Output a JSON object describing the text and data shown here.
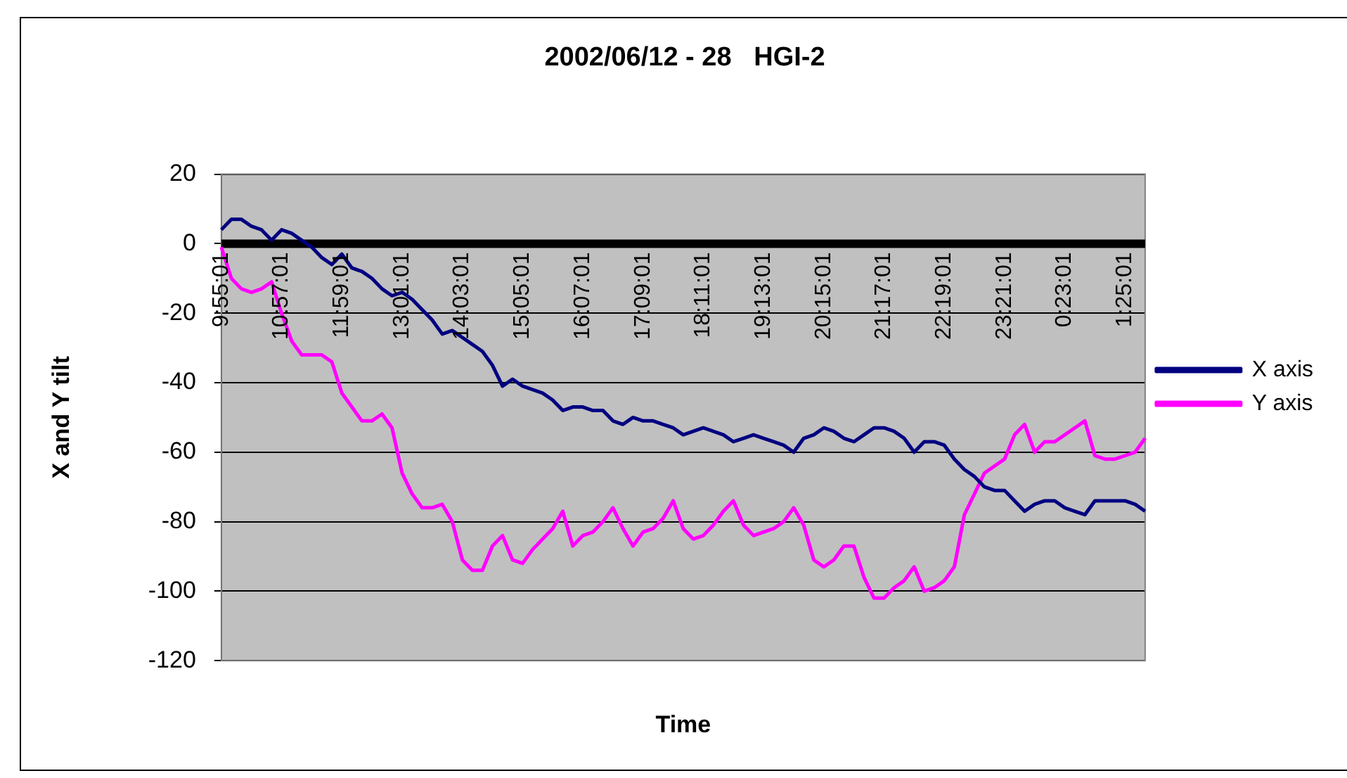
{
  "chart_data": {
    "type": "line",
    "title": "2002/06/12 - 28   HGI-2",
    "xlabel": "Time",
    "ylabel": "X and Y tilt",
    "categories": [
      "9:55:01",
      null,
      null,
      null,
      null,
      null,
      "10:57:01",
      null,
      null,
      null,
      null,
      null,
      "11:59:01",
      null,
      null,
      null,
      null,
      null,
      "13:01:01",
      null,
      null,
      null,
      null,
      null,
      "14:03:01",
      null,
      null,
      null,
      null,
      null,
      "15:05:01",
      null,
      null,
      null,
      null,
      null,
      "16:07:01",
      null,
      null,
      null,
      null,
      null,
      "17:09:01",
      null,
      null,
      null,
      null,
      null,
      "18:11:01",
      null,
      null,
      null,
      null,
      null,
      "19:13:01",
      null,
      null,
      null,
      null,
      null,
      "20:15:01",
      null,
      null,
      null,
      null,
      null,
      "21:17:01",
      null,
      null,
      null,
      null,
      null,
      "22:19:01",
      null,
      null,
      null,
      null,
      null,
      "23:21:01",
      null,
      null,
      null,
      null,
      null,
      "0:23:01",
      null,
      null,
      null,
      null,
      null,
      "1:25:01",
      null,
      null
    ],
    "series": [
      {
        "name": "X axis",
        "color": "#000080",
        "values": [
          4,
          7,
          7,
          5,
          4,
          1,
          4,
          3,
          1,
          -1,
          -4,
          -6,
          -3,
          -7,
          -8,
          -10,
          -13,
          -15,
          -14,
          -16,
          -19,
          -22,
          -26,
          -25,
          -27,
          -29,
          -31,
          -35,
          -41,
          -39,
          -41,
          -42,
          -43,
          -45,
          -48,
          -47,
          -47,
          -48,
          -48,
          -51,
          -52,
          -50,
          -51,
          -51,
          -52,
          -53,
          -55,
          -54,
          -53,
          -54,
          -55,
          -57,
          -56,
          -55,
          -56,
          -57,
          -58,
          -60,
          -56,
          -55,
          -53,
          -54,
          -56,
          -57,
          -55,
          -53,
          -53,
          -54,
          -56,
          -60,
          -57,
          -57,
          -58,
          -62,
          -65,
          -67,
          -70,
          -71,
          -71,
          -74,
          -77,
          -75,
          -74,
          -74,
          -76,
          -77,
          -78,
          -74,
          -74,
          -74,
          -74,
          -75,
          -77
        ]
      },
      {
        "name": "Y axis",
        "color": "#ff00ff",
        "values": [
          -1,
          -10,
          -13,
          -14,
          -13,
          -11,
          -20,
          -28,
          -32,
          -32,
          -32,
          -34,
          -43,
          -47,
          -51,
          -51,
          -49,
          -53,
          -66,
          -72,
          -76,
          -76,
          -75,
          -80,
          -91,
          -94,
          -94,
          -87,
          -84,
          -91,
          -92,
          -88,
          -85,
          -82,
          -77,
          -87,
          -84,
          -83,
          -80,
          -76,
          -82,
          -87,
          -83,
          -82,
          -79,
          -74,
          -82,
          -85,
          -84,
          -81,
          -77,
          -74,
          -81,
          -84,
          -83,
          -82,
          -80,
          -76,
          -81,
          -91,
          -93,
          -91,
          -87,
          -87,
          -96,
          -102,
          -102,
          -99,
          -97,
          -93,
          -100,
          -99,
          -97,
          -93,
          -78,
          -72,
          -66,
          -64,
          -62,
          -55,
          -52,
          -60,
          -57,
          -57,
          -55,
          -53,
          -51,
          -61,
          -62,
          -62,
          -61,
          -60,
          -56
        ]
      }
    ],
    "ylim": [
      -120,
      20
    ],
    "yticks": [
      -120,
      -100,
      -80,
      -60,
      -40,
      -20,
      0,
      20
    ],
    "grid": "y",
    "legend": "right",
    "marker": "none"
  }
}
